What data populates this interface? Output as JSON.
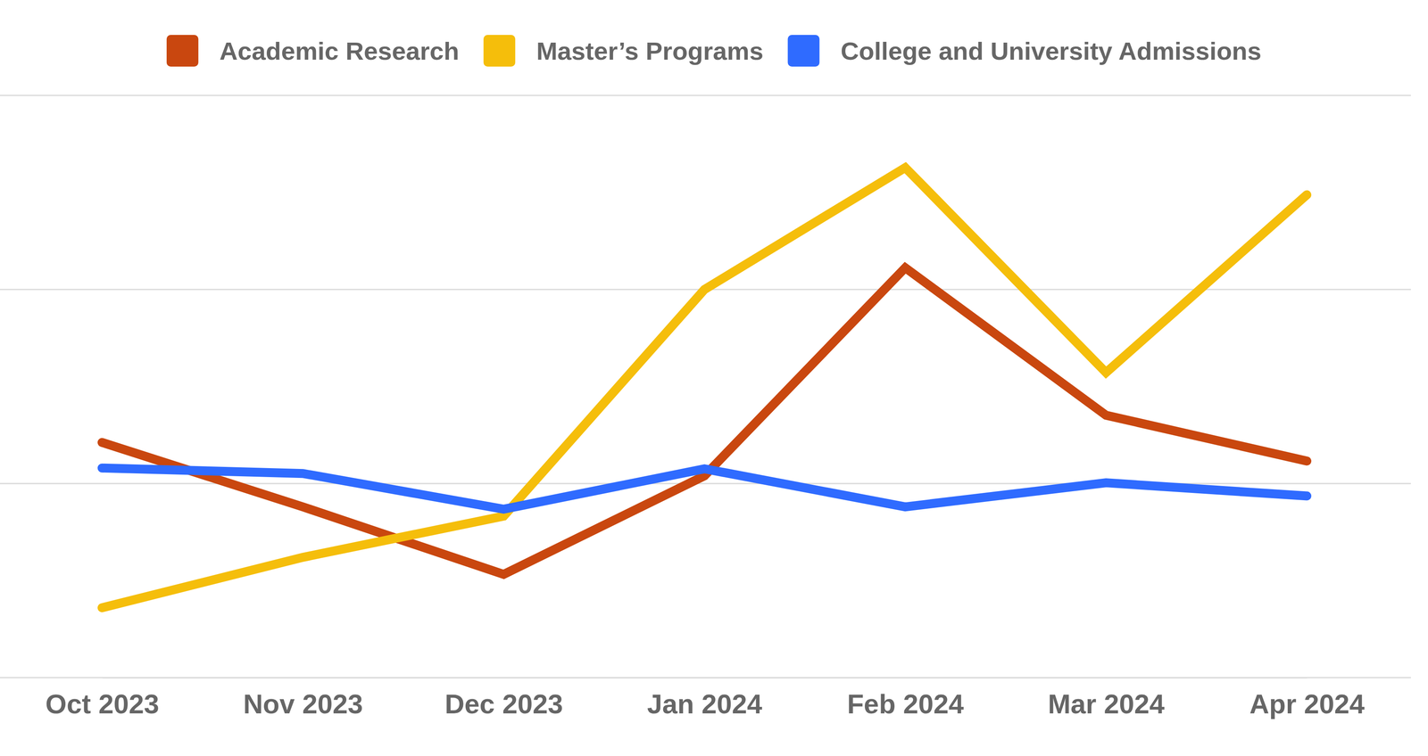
{
  "chart_data": {
    "type": "line",
    "categories": [
      "Oct 2023",
      "Nov 2023",
      "Dec 2023",
      "Jan 2024",
      "Feb 2024",
      "Mar 2024",
      "Apr 2024"
    ],
    "series": [
      {
        "name": "Academic Research",
        "color": "#c9470f",
        "values": [
          30.3,
          22,
          13.3,
          26,
          52.8,
          33.8,
          27.9
        ]
      },
      {
        "name": "Master’s Programs",
        "color": "#f5be0b",
        "values": [
          9,
          15.5,
          20.8,
          50,
          65.7,
          39.3,
          62.2
        ]
      },
      {
        "name": "College and University Admissions",
        "color": "#2f6bff",
        "values": [
          27,
          26.3,
          21.7,
          26.9,
          22,
          25.1,
          23.4
        ]
      }
    ],
    "ylim": [
      0,
      75
    ],
    "yticks": [
      0,
      25,
      50,
      75
    ],
    "grid": true,
    "tick_labels": "x",
    "legend": "top"
  }
}
